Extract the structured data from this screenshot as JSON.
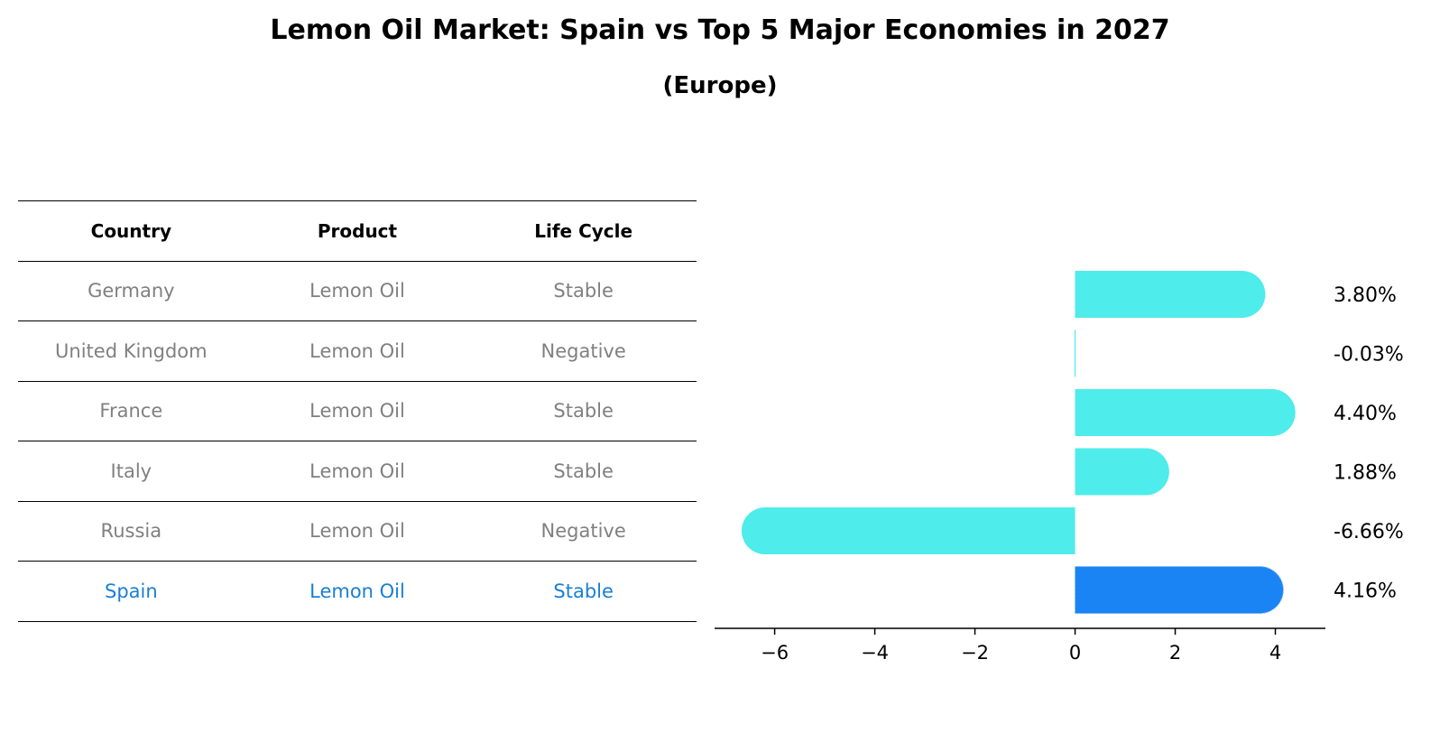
{
  "chart_data": {
    "type": "bar",
    "orientation": "horizontal",
    "title": "Lemon Oil Market: Spain vs Top 5 Major Economies in 2027",
    "subtitle": "(Europe)",
    "xlabel": "",
    "ylabel": "",
    "xlim": [
      -7.2,
      5.0
    ],
    "xticks": [
      -6,
      -4,
      -2,
      0,
      2,
      4
    ],
    "xtick_labels": [
      "−6",
      "−4",
      "−2",
      "0",
      "2",
      "4"
    ],
    "categories": [
      "Germany",
      "United Kingdom",
      "France",
      "Italy",
      "Russia",
      "Spain"
    ],
    "values": [
      3.8,
      -0.03,
      4.4,
      1.88,
      -6.66,
      4.16
    ],
    "value_labels": [
      "3.80%",
      "-0.03%",
      "4.40%",
      "1.88%",
      "-6.66%",
      "4.16%"
    ],
    "highlight_index": 5,
    "colors": {
      "default": "#4eecea",
      "highlight": "#1a84f4",
      "highlight_text": "#1a7fd4",
      "muted_text": "#808080"
    }
  },
  "table": {
    "headers": [
      "Country",
      "Product",
      "Life Cycle"
    ],
    "rows": [
      [
        "Germany",
        "Lemon Oil",
        "Stable"
      ],
      [
        "United Kingdom",
        "Lemon Oil",
        "Negative"
      ],
      [
        "France",
        "Lemon Oil",
        "Stable"
      ],
      [
        "Italy",
        "Lemon Oil",
        "Stable"
      ],
      [
        "Russia",
        "Lemon Oil",
        "Negative"
      ],
      [
        "Spain",
        "Lemon Oil",
        "Stable"
      ]
    ]
  }
}
